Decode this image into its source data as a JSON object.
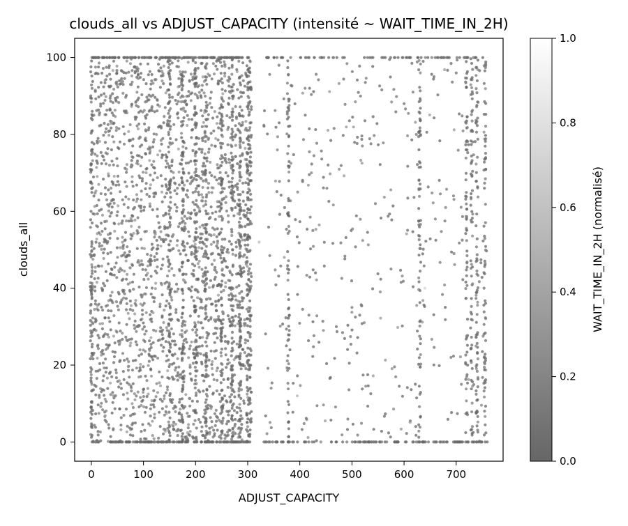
{
  "chart_data": {
    "type": "scatter",
    "title": "clouds_all vs ADJUST_CAPACITY (intensité ~ WAIT_TIME_IN_2H)",
    "xlabel": "ADJUST_CAPACITY",
    "ylabel": "clouds_all",
    "xlim": [
      -32,
      790
    ],
    "ylim": [
      -5,
      105
    ],
    "xticks": [
      0,
      100,
      200,
      300,
      400,
      500,
      600,
      700
    ],
    "yticks": [
      0,
      20,
      40,
      60,
      80,
      100
    ],
    "grid": false,
    "colormap": "grayscale (dark = low, white = high), marker alpha ~0.7",
    "colorbar": {
      "label": "WAIT_TIME_IN_2H (normalisé)",
      "range": [
        0.0,
        1.0
      ],
      "ticks": [
        "0.0",
        "0.2",
        "0.4",
        "0.6",
        "0.8",
        "1.0"
      ]
    },
    "dense_columns": [
      0,
      150,
      175,
      200,
      220,
      250,
      270,
      285,
      300,
      305,
      378,
      630,
      720,
      730,
      740,
      755
    ],
    "point_density_regions": [
      {
        "x_range": [
          0,
          305
        ],
        "density": "very high"
      },
      {
        "x_range": [
          330,
          760
        ],
        "density": "sparse"
      }
    ],
    "sample_points": [
      {
        "x": 5,
        "y": 85,
        "c": 0.1
      },
      {
        "x": 12,
        "y": 56,
        "c": 0.05
      },
      {
        "x": 20,
        "y": 40,
        "c": 0.1
      },
      {
        "x": 35,
        "y": 72,
        "c": 0.15
      },
      {
        "x": 48,
        "y": 18,
        "c": 0.1
      },
      {
        "x": 60,
        "y": 63,
        "c": 0.05
      },
      {
        "x": 75,
        "y": 93,
        "c": 0.2
      },
      {
        "x": 90,
        "y": 30,
        "c": 0.1
      },
      {
        "x": 110,
        "y": 47,
        "c": 0.05
      },
      {
        "x": 125,
        "y": 80,
        "c": 0.15
      },
      {
        "x": 140,
        "y": 12,
        "c": 0.1
      },
      {
        "x": 165,
        "y": 66,
        "c": 0.05
      },
      {
        "x": 190,
        "y": 25,
        "c": 0.1
      },
      {
        "x": 210,
        "y": 90,
        "c": 0.1
      },
      {
        "x": 235,
        "y": 52,
        "c": 0.05
      },
      {
        "x": 260,
        "y": 8,
        "c": 0.1
      },
      {
        "x": 290,
        "y": 75,
        "c": 0.05
      },
      {
        "x": 322,
        "y": 52,
        "c": 0.55
      },
      {
        "x": 345,
        "y": 14,
        "c": 0.1
      },
      {
        "x": 360,
        "y": 98,
        "c": 0.05
      },
      {
        "x": 395,
        "y": 12,
        "c": 0.5
      },
      {
        "x": 410,
        "y": 92,
        "c": 0.1
      },
      {
        "x": 425,
        "y": 55,
        "c": 0.05
      },
      {
        "x": 452,
        "y": 66,
        "c": 0.1
      },
      {
        "x": 470,
        "y": 30,
        "c": 0.05
      },
      {
        "x": 500,
        "y": 35,
        "c": 0.1
      },
      {
        "x": 520,
        "y": 77,
        "c": 0.1
      },
      {
        "x": 545,
        "y": 62,
        "c": 0.05
      },
      {
        "x": 575,
        "y": 45,
        "c": 0.1
      },
      {
        "x": 600,
        "y": 88,
        "c": 0.05
      },
      {
        "x": 640,
        "y": 40,
        "c": 0.7
      },
      {
        "x": 660,
        "y": 58,
        "c": 0.1
      },
      {
        "x": 690,
        "y": 22,
        "c": 0.1
      },
      {
        "x": 700,
        "y": 96,
        "c": 0.05
      },
      {
        "x": 710,
        "y": 15,
        "c": 0.1
      }
    ]
  }
}
